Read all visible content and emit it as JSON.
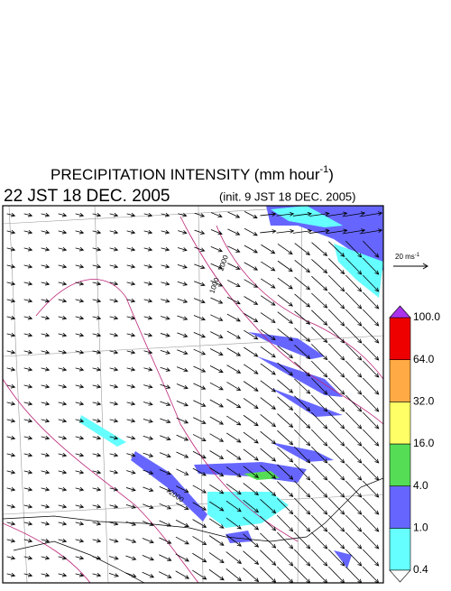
{
  "title": {
    "main": "PRECIPITATION INTENSITY (mm hour",
    "main_sup": "-1",
    "main_end": ")"
  },
  "subtitle": {
    "time": "22 JST 18 DEC. 2005",
    "init": "(init. 9 JST 18 DEC. 2005)"
  },
  "vector_reference": {
    "label": "20 ms",
    "label_sup": "-1"
  },
  "contour_labels": [
    "2000",
    "2000",
    "1000"
  ],
  "colorbar": {
    "levels": [
      "0.4",
      "1.0",
      "4.0",
      "16.0",
      "32.0",
      "64.0",
      "100.0"
    ],
    "colors": [
      "#66ffff",
      "#6666ff",
      "#55dd55",
      "#ffff66",
      "#ffaa44",
      "#ee0000"
    ],
    "over_color": "#aa33ee",
    "under_color": "#ffffff"
  }
}
